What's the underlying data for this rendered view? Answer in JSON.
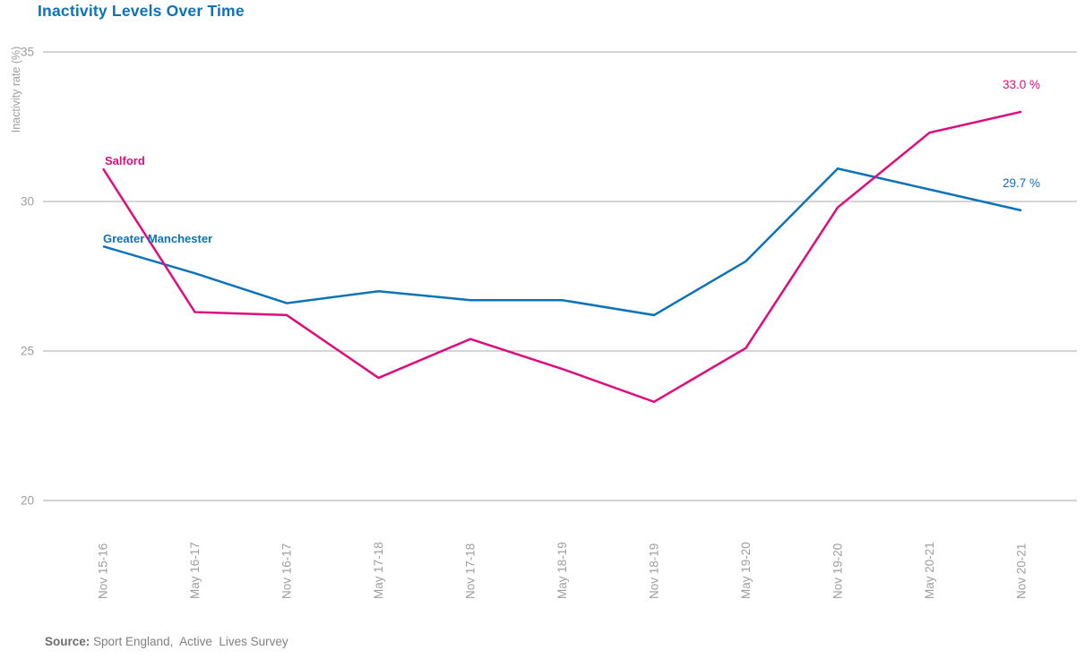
{
  "title": "Inactivity Levels Over Time",
  "source": {
    "prefix": "Source:",
    "text": " Sport England,  Active  Lives Survey"
  },
  "colors": {
    "title_blue": "#0D73B8",
    "salford_pink": "#DE0D7D",
    "greater_manchester_blue": "#0D73B8",
    "gridline_gray": "#ABABAB",
    "tick_label_gray": "#9E9E9E",
    "source_gray": "#808184"
  },
  "chart_data": {
    "type": "line",
    "title": "Inactivity Levels Over Time",
    "xlabel": "",
    "ylabel": "Inactivity rate (%)",
    "ylim": [
      20,
      35
    ],
    "yticks": [
      35,
      30,
      25,
      20
    ],
    "grid": "horizontal-only",
    "legend_position": "inline-labels-near-line-start",
    "categories": [
      "Nov 15-16",
      "May 16-17",
      "Nov 16-17",
      "May 17-18",
      "Nov 17-18",
      "May 18-19",
      "Nov 18-19",
      "May 19-20",
      "Nov 19-20",
      "May 20-21",
      "Nov 20-21"
    ],
    "series": [
      {
        "name": "Salford",
        "color": "#DE0D7D",
        "values": [
          31.1,
          26.3,
          26.2,
          24.1,
          25.4,
          24.4,
          23.3,
          25.1,
          29.8,
          32.3,
          33.0
        ],
        "end_label": "33.0 %"
      },
      {
        "name": "Greater Manchester",
        "color": "#0D73B8",
        "values": [
          28.5,
          27.6,
          26.6,
          27.0,
          26.7,
          26.7,
          26.2,
          28.0,
          31.1,
          30.4,
          29.7
        ],
        "end_label": "29.7 %"
      }
    ]
  }
}
